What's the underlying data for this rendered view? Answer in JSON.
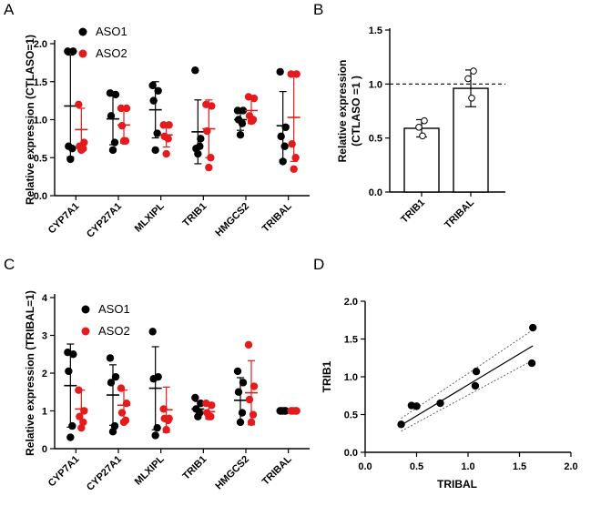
{
  "colors": {
    "aso1": "#000000",
    "aso2": "#e41a1c"
  },
  "chart_data": [
    {
      "panel": "A",
      "type": "scatter",
      "ylabel": "Relative expression (CTLASO=1)",
      "ylim": [
        0,
        2.0
      ],
      "yticks": [
        "0.0",
        "0.5",
        "1.0",
        "1.5",
        "2.0"
      ],
      "categories": [
        "CYP7A1",
        "CYP27A1",
        "MLXIPL",
        "TRIB1",
        "HMGCS2",
        "TRIBAL"
      ],
      "legend": [
        "ASO1",
        "ASO2"
      ],
      "series": [
        {
          "name": "ASO1",
          "points": [
            [
              1.9,
              1.9,
              0.65,
              0.62,
              0.48
            ],
            [
              1.35,
              1.33,
              1.05,
              0.7,
              0.6
            ],
            [
              1.45,
              1.38,
              1.25,
              0.82,
              0.6
            ],
            [
              1.65,
              0.75,
              0.62,
              0.65,
              0.55
            ],
            [
              1.12,
              1.12,
              1.0,
              0.95,
              0.8
            ],
            [
              1.63,
              0.9,
              0.78,
              0.65,
              0.45
            ]
          ],
          "mean": [
            1.18,
            1.01,
            1.13,
            0.84,
            1.0,
            0.92
          ],
          "sd": [
            0.67,
            0.34,
            0.37,
            0.42,
            0.14,
            0.45
          ]
        },
        {
          "name": "ASO2",
          "points": [
            [
              1.2,
              0.7,
              0.65,
              0.62,
              0.6
            ],
            [
              1.15,
              1.15,
              0.92,
              0.72,
              0.72
            ],
            [
              0.93,
              0.93,
              0.78,
              0.75,
              0.55
            ],
            [
              1.2,
              1.18,
              0.85,
              0.5,
              0.37
            ],
            [
              1.3,
              1.28,
              1.05,
              1.0,
              0.98
            ],
            [
              1.6,
              1.6,
              0.68,
              0.5,
              0.35
            ]
          ],
          "mean": [
            0.87,
            0.93,
            0.8,
            0.88,
            1.12,
            1.03
          ],
          "sd": [
            0.28,
            0.24,
            0.16,
            0.38,
            0.17,
            0.58
          ]
        }
      ]
    },
    {
      "panel": "B",
      "type": "bar",
      "ylabel": [
        "Relative expression",
        "(CTLASO =1 )"
      ],
      "ylim": [
        0,
        1.5
      ],
      "yticks": [
        "0.0",
        "0.5",
        "1.0",
        "1.5"
      ],
      "categories": [
        "TRIB1",
        "TRIBAL"
      ],
      "values": [
        0.59,
        0.96
      ],
      "sd": [
        0.08,
        0.17
      ],
      "points": [
        [
          0.66,
          0.6,
          0.52
        ],
        [
          1.12,
          1.05,
          0.87
        ]
      ],
      "reference_line": 1.0
    },
    {
      "panel": "C",
      "type": "scatter",
      "ylabel": "Relative expression (TRIBAL=1)",
      "ylim": [
        0,
        4
      ],
      "yticks": [
        "0",
        "1",
        "2",
        "3",
        "4"
      ],
      "categories": [
        "CYP7A1",
        "CYP27A1",
        "MLXIPL",
        "TRIB1",
        "HMGCS2",
        "TRIBAL"
      ],
      "legend": [
        "ASO1",
        "ASO2"
      ],
      "series": [
        {
          "name": "ASO1",
          "points": [
            [
              2.55,
              2.5,
              2.05,
              0.6,
              0.3
            ],
            [
              2.4,
              1.9,
              1.75,
              0.6,
              0.45
            ],
            [
              3.1,
              1.9,
              1.85,
              0.55,
              0.35
            ],
            [
              1.35,
              1.2,
              1.05,
              0.95,
              0.85
            ],
            [
              2.05,
              1.75,
              1.5,
              0.95,
              0.7
            ],
            [
              1.0,
              1.0,
              1.0,
              1.0,
              1.0
            ]
          ],
          "mean": [
            1.67,
            1.42,
            1.6,
            1.05,
            1.28,
            1.0
          ],
          "sd": [
            1.1,
            0.8,
            1.1,
            0.2,
            0.6,
            0.0
          ]
        },
        {
          "name": "ASO2",
          "points": [
            [
              1.55,
              1.0,
              0.85,
              0.7,
              0.55
            ],
            [
              1.6,
              1.2,
              0.95,
              0.75,
              0.7
            ],
            [
              1.05,
              0.8,
              0.8,
              0.75,
              0.5
            ],
            [
              1.2,
              1.15,
              0.95,
              0.85,
              0.85
            ],
            [
              2.75,
              1.65,
              1.3,
              0.9,
              0.7
            ],
            [
              1.0,
              1.0,
              1.0,
              1.0,
              1.0
            ]
          ],
          "mean": [
            1.05,
            1.15,
            1.03,
            0.98,
            1.48,
            1.0
          ],
          "sd": [
            0.5,
            0.4,
            0.6,
            0.2,
            0.85,
            0.0
          ]
        }
      ]
    },
    {
      "panel": "D",
      "type": "scatter",
      "xlabel": "TRIBAL",
      "ylabel": "TRIB1",
      "xlim": [
        0,
        2.0
      ],
      "ylim": [
        0,
        2.0
      ],
      "xticks": [
        "0.0",
        "0.5",
        "1.0",
        "1.5",
        "2.0"
      ],
      "yticks": [
        "0.0",
        "0.5",
        "1.0",
        "1.5",
        "2.0"
      ],
      "x": [
        0.35,
        0.45,
        0.5,
        0.73,
        1.07,
        1.08,
        1.62,
        1.63
      ],
      "y": [
        0.37,
        0.62,
        0.61,
        0.65,
        0.88,
        1.07,
        1.18,
        1.65
      ],
      "fit": {
        "x": [
          0.35,
          1.63
        ],
        "y": [
          0.36,
          1.41
        ]
      },
      "ci_upper": {
        "x": [
          0.35,
          1.63
        ],
        "y": [
          0.45,
          1.62
        ]
      },
      "ci_lower": {
        "x": [
          0.35,
          1.63
        ],
        "y": [
          0.28,
          1.22
        ]
      }
    }
  ]
}
